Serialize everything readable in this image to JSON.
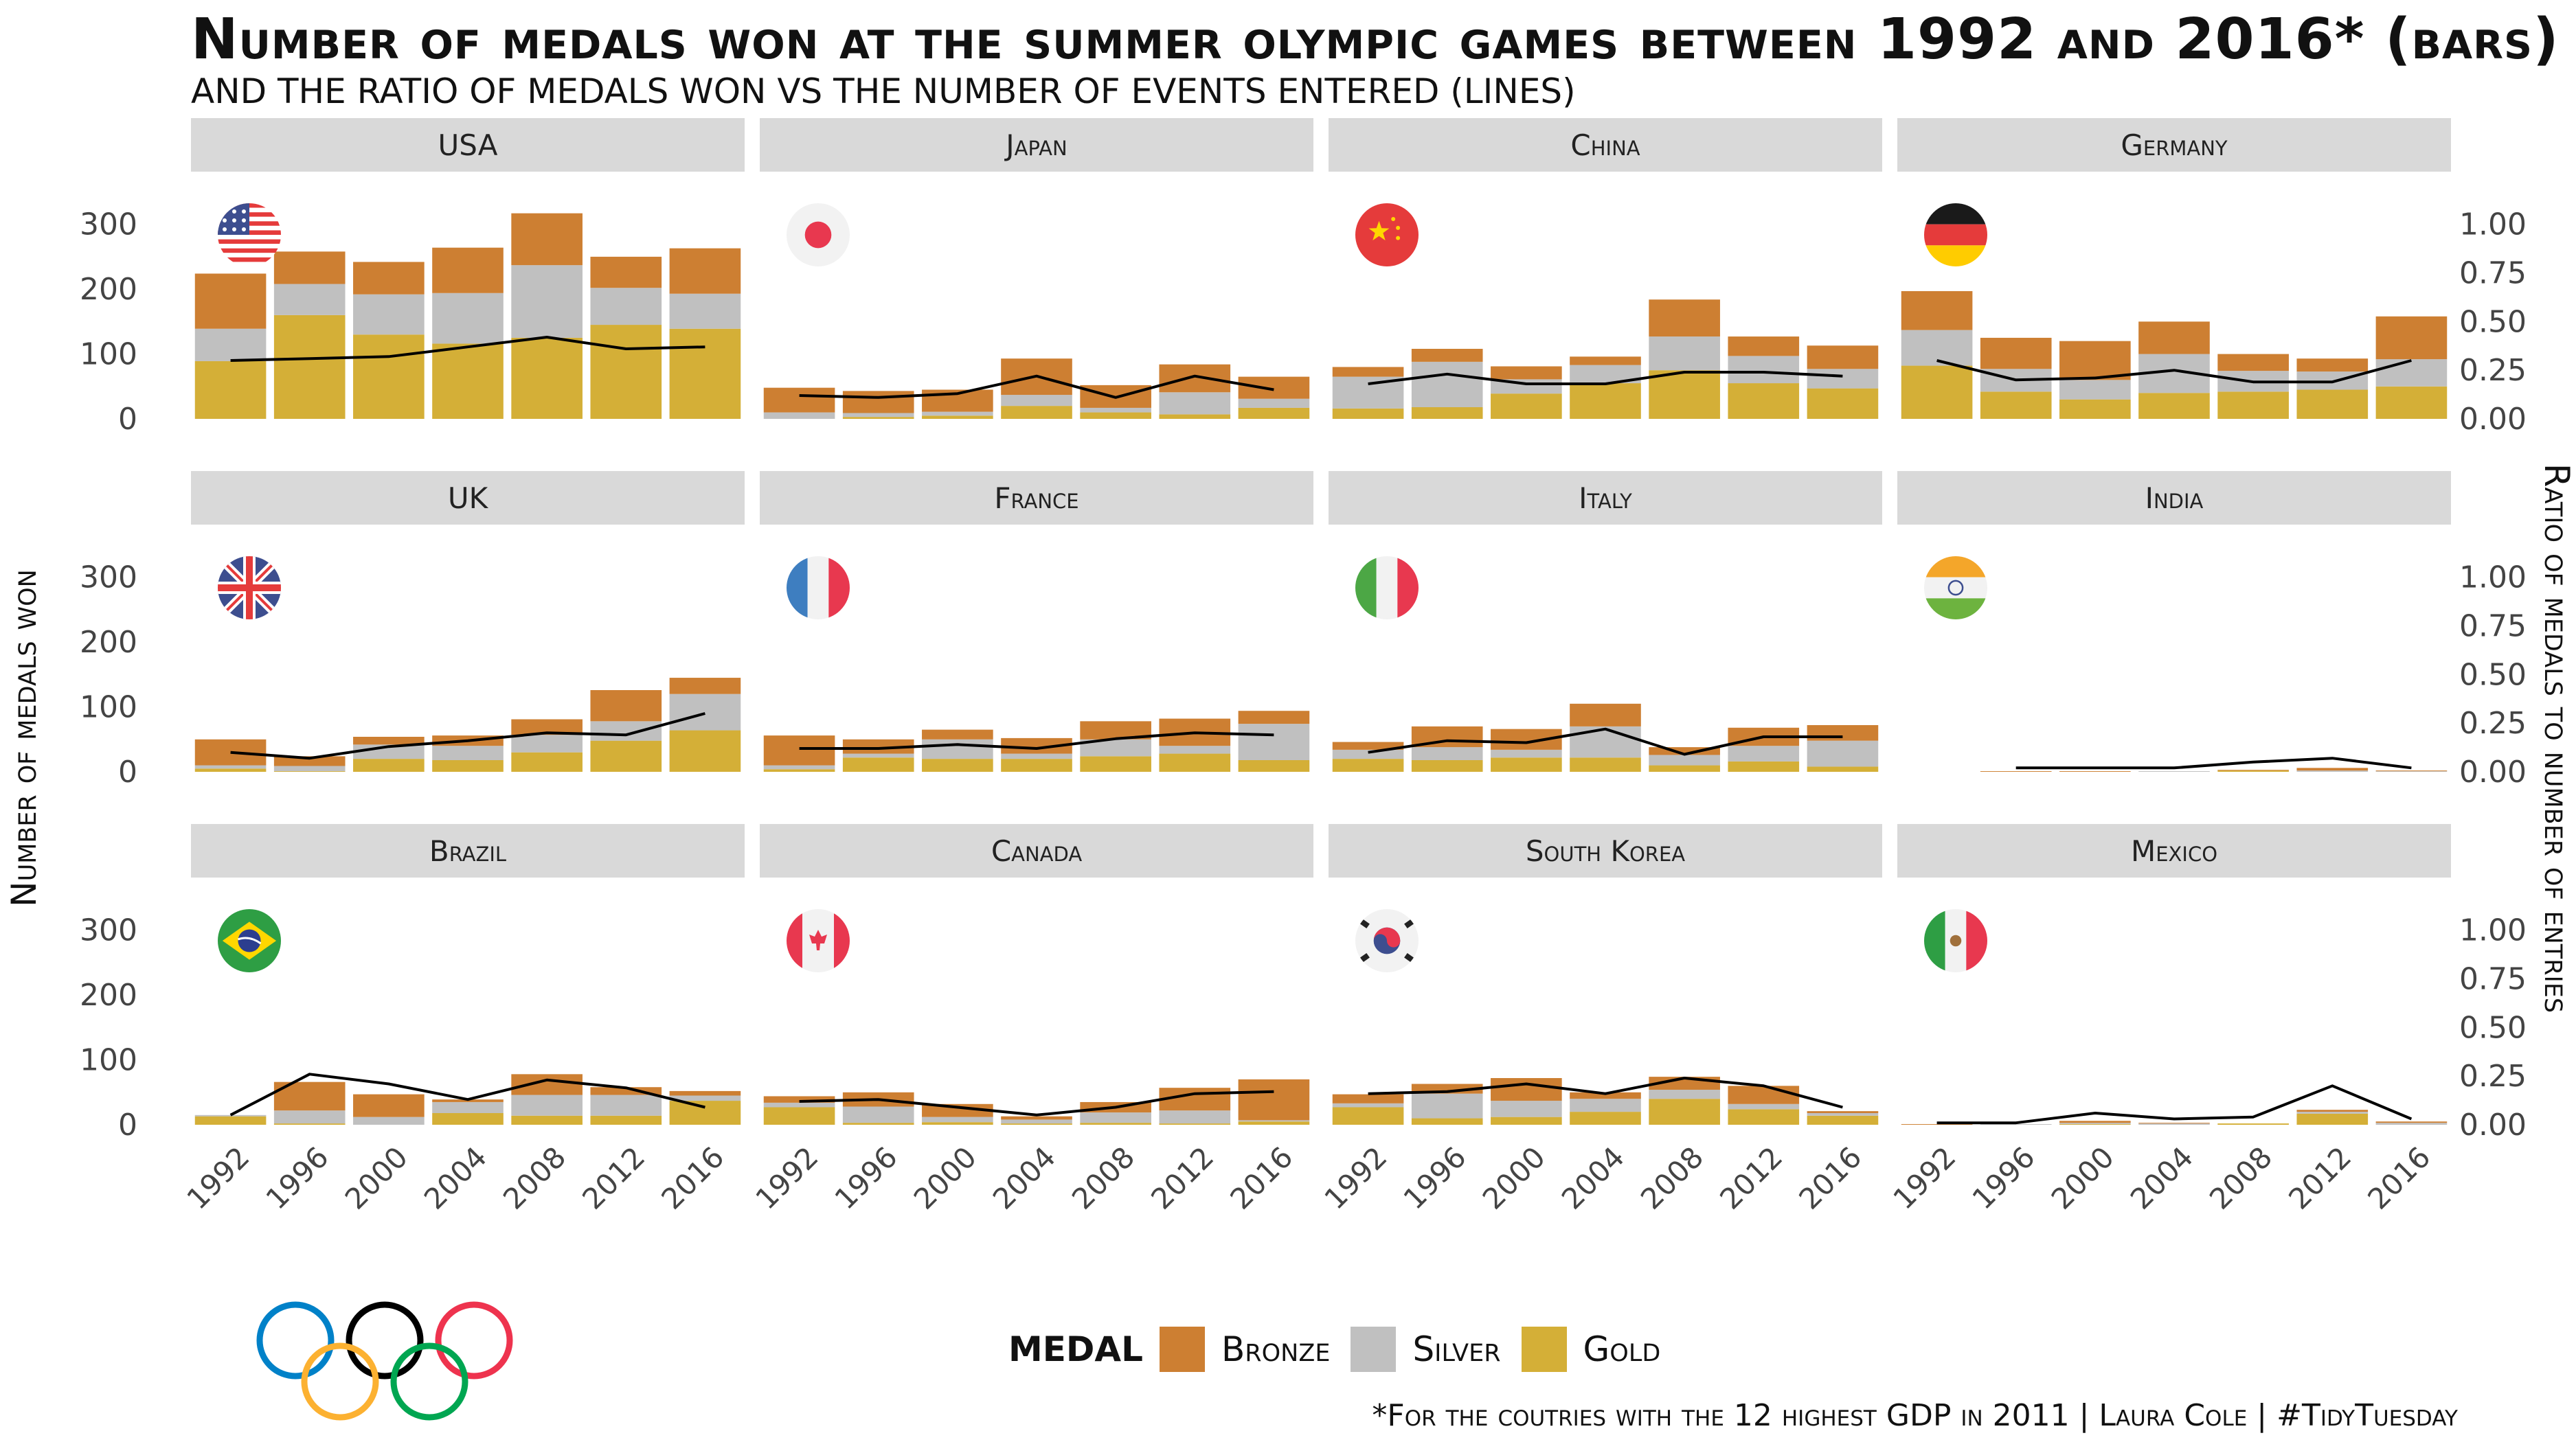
{
  "title": "Number of medals won at the summer olympic games between 1992 and 2016* (bars)",
  "subtitle": "and the ratio of medals won vs the number of events entered (lines)",
  "caption": "*For the coutries with the 12 highest GDP in 2011 | Laura Cole | #TidyTuesday",
  "legend": {
    "title": "MEDAL",
    "items": [
      {
        "label": "Bronze",
        "color": "#CD7F32"
      },
      {
        "label": "Silver",
        "color": "#C0C0C0"
      },
      {
        "label": "Gold",
        "color": "#D4AF37"
      }
    ]
  },
  "chart_data": {
    "type": "bar",
    "subtype": "stacked bars with secondary-axis line, faceted 3x4",
    "ylabel": "Number of medals won",
    "y2label": "Ratio of medals to number of entries",
    "ylim": [
      0,
      360
    ],
    "y2lim": [
      0,
      1.2
    ],
    "yticks": [
      0,
      100,
      200,
      300
    ],
    "y2ticks": [
      "0.00",
      "0.25",
      "0.50",
      "0.75",
      "1.00"
    ],
    "years": [
      "1992",
      "1996",
      "2000",
      "2004",
      "2008",
      "2012",
      "2016"
    ],
    "stack_order": [
      "Gold",
      "Silver",
      "Bronze"
    ],
    "colors": {
      "Gold": "#D4AF37",
      "Silver": "#C0C0C0",
      "Bronze": "#CD7F32",
      "line": "#000000"
    },
    "panels": [
      {
        "country": "USA",
        "flag": "usa",
        "gold": [
          89,
          160,
          130,
          116,
          125,
          145,
          139
        ],
        "silver": [
          50,
          48,
          62,
          78,
          112,
          57,
          54
        ],
        "bronze": [
          85,
          50,
          50,
          70,
          80,
          48,
          70
        ],
        "ratio": [
          0.3,
          0.31,
          0.32,
          0.37,
          0.42,
          0.36,
          0.37
        ]
      },
      {
        "country": "Japan",
        "flag": "japan",
        "gold": [
          0,
          3,
          5,
          20,
          10,
          7,
          17
        ],
        "silver": [
          10,
          6,
          6,
          17,
          7,
          34,
          14
        ],
        "bronze": [
          38,
          34,
          34,
          56,
          35,
          43,
          34
        ],
        "ratio": [
          0.12,
          0.11,
          0.13,
          0.22,
          0.11,
          0.22,
          0.15
        ]
      },
      {
        "country": "China",
        "flag": "china",
        "gold": [
          16,
          18,
          39,
          55,
          75,
          55,
          47
        ],
        "silver": [
          49,
          70,
          22,
          28,
          52,
          42,
          30
        ],
        "bronze": [
          15,
          20,
          20,
          13,
          57,
          30,
          36
        ],
        "ratio": [
          0.18,
          0.23,
          0.18,
          0.18,
          0.24,
          0.24,
          0.22
        ]
      },
      {
        "country": "Germany",
        "flag": "germany",
        "gold": [
          82,
          42,
          30,
          40,
          42,
          45,
          50
        ],
        "silver": [
          55,
          35,
          30,
          60,
          32,
          28,
          42
        ],
        "bronze": [
          60,
          48,
          60,
          50,
          26,
          20,
          66
        ],
        "ratio": [
          0.3,
          0.2,
          0.21,
          0.25,
          0.19,
          0.19,
          0.3
        ]
      },
      {
        "country": "UK",
        "flag": "uk",
        "gold": [
          5,
          1,
          20,
          18,
          30,
          48,
          64
        ],
        "silver": [
          5,
          8,
          22,
          22,
          27,
          30,
          56
        ],
        "bronze": [
          40,
          15,
          12,
          16,
          24,
          48,
          25
        ],
        "ratio": [
          0.1,
          0.07,
          0.13,
          0.16,
          0.2,
          0.19,
          0.3
        ]
      },
      {
        "country": "France",
        "flag": "france",
        "gold": [
          4,
          22,
          20,
          20,
          24,
          28,
          18
        ],
        "silver": [
          6,
          6,
          30,
          8,
          26,
          12,
          56
        ],
        "bronze": [
          46,
          22,
          15,
          24,
          28,
          42,
          20
        ],
        "ratio": [
          0.12,
          0.12,
          0.14,
          0.12,
          0.17,
          0.2,
          0.19
        ]
      },
      {
        "country": "Italy",
        "flag": "italy",
        "gold": [
          20,
          18,
          22,
          22,
          10,
          16,
          8
        ],
        "silver": [
          14,
          20,
          12,
          48,
          16,
          24,
          40
        ],
        "bronze": [
          12,
          32,
          32,
          35,
          12,
          28,
          24
        ],
        "ratio": [
          0.1,
          0.16,
          0.15,
          0.22,
          0.09,
          0.18,
          0.18
        ]
      },
      {
        "country": "India",
        "flag": "india",
        "gold": [
          0,
          0,
          0,
          0,
          2,
          0,
          0
        ],
        "silver": [
          0,
          0,
          0,
          1,
          0,
          2,
          1
        ],
        "bronze": [
          0,
          1,
          1,
          0,
          1,
          4,
          1
        ],
        "ratio": [
          null,
          0.02,
          0.02,
          0.02,
          0.05,
          0.07,
          0.02
        ]
      },
      {
        "country": "Brazil",
        "flag": "brazil",
        "gold": [
          13,
          2,
          0,
          18,
          14,
          14,
          37
        ],
        "silver": [
          2,
          20,
          12,
          17,
          32,
          32,
          8
        ],
        "bronze": [
          0,
          44,
          35,
          4,
          32,
          12,
          7
        ],
        "ratio": [
          0.05,
          0.26,
          0.21,
          0.13,
          0.23,
          0.19,
          0.09
        ]
      },
      {
        "country": "Canada",
        "flag": "canada",
        "gold": [
          27,
          3,
          4,
          2,
          3,
          2,
          5
        ],
        "silver": [
          7,
          25,
          8,
          6,
          16,
          20,
          2
        ],
        "bronze": [
          10,
          22,
          20,
          5,
          16,
          35,
          63
        ],
        "ratio": [
          0.12,
          0.13,
          0.09,
          0.05,
          0.09,
          0.16,
          0.17
        ]
      },
      {
        "country": "South Korea",
        "flag": "korea",
        "gold": [
          27,
          10,
          12,
          20,
          40,
          24,
          14
        ],
        "silver": [
          6,
          38,
          25,
          20,
          14,
          8,
          4
        ],
        "bronze": [
          14,
          15,
          35,
          10,
          20,
          28,
          3
        ],
        "ratio": [
          0.16,
          0.17,
          0.21,
          0.16,
          0.24,
          0.2,
          0.09
        ]
      },
      {
        "country": "Mexico",
        "flag": "mexico",
        "gold": [
          0,
          0,
          1,
          0,
          2,
          17,
          0
        ],
        "silver": [
          0,
          1,
          2,
          2,
          0,
          3,
          3
        ],
        "bronze": [
          1,
          0,
          3,
          1,
          0,
          3,
          2
        ],
        "ratio": [
          0.01,
          0.01,
          0.06,
          0.03,
          0.04,
          0.2,
          0.03
        ]
      }
    ]
  }
}
